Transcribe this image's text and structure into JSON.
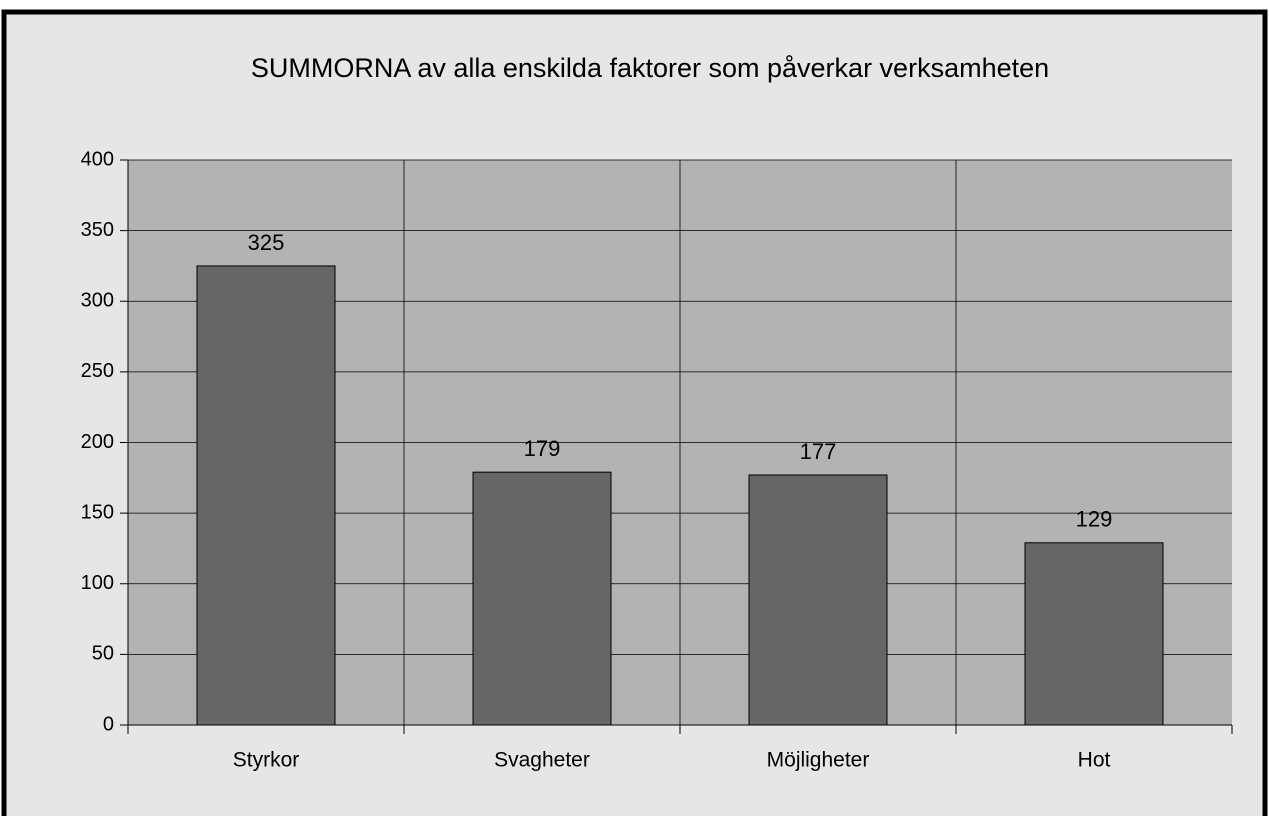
{
  "chart_data": {
    "type": "bar",
    "title": "SUMMORNA av alla enskilda faktorer som påverkar verksamheten",
    "categories": [
      "Styrkor",
      "Svagheter",
      "Möjligheter",
      "Hot"
    ],
    "values": [
      325,
      179,
      177,
      129
    ],
    "color": "#666666",
    "ylim": [
      0,
      400
    ],
    "yticks": [
      0,
      50,
      100,
      150,
      200,
      250,
      300,
      350,
      400
    ],
    "grid": true
  }
}
